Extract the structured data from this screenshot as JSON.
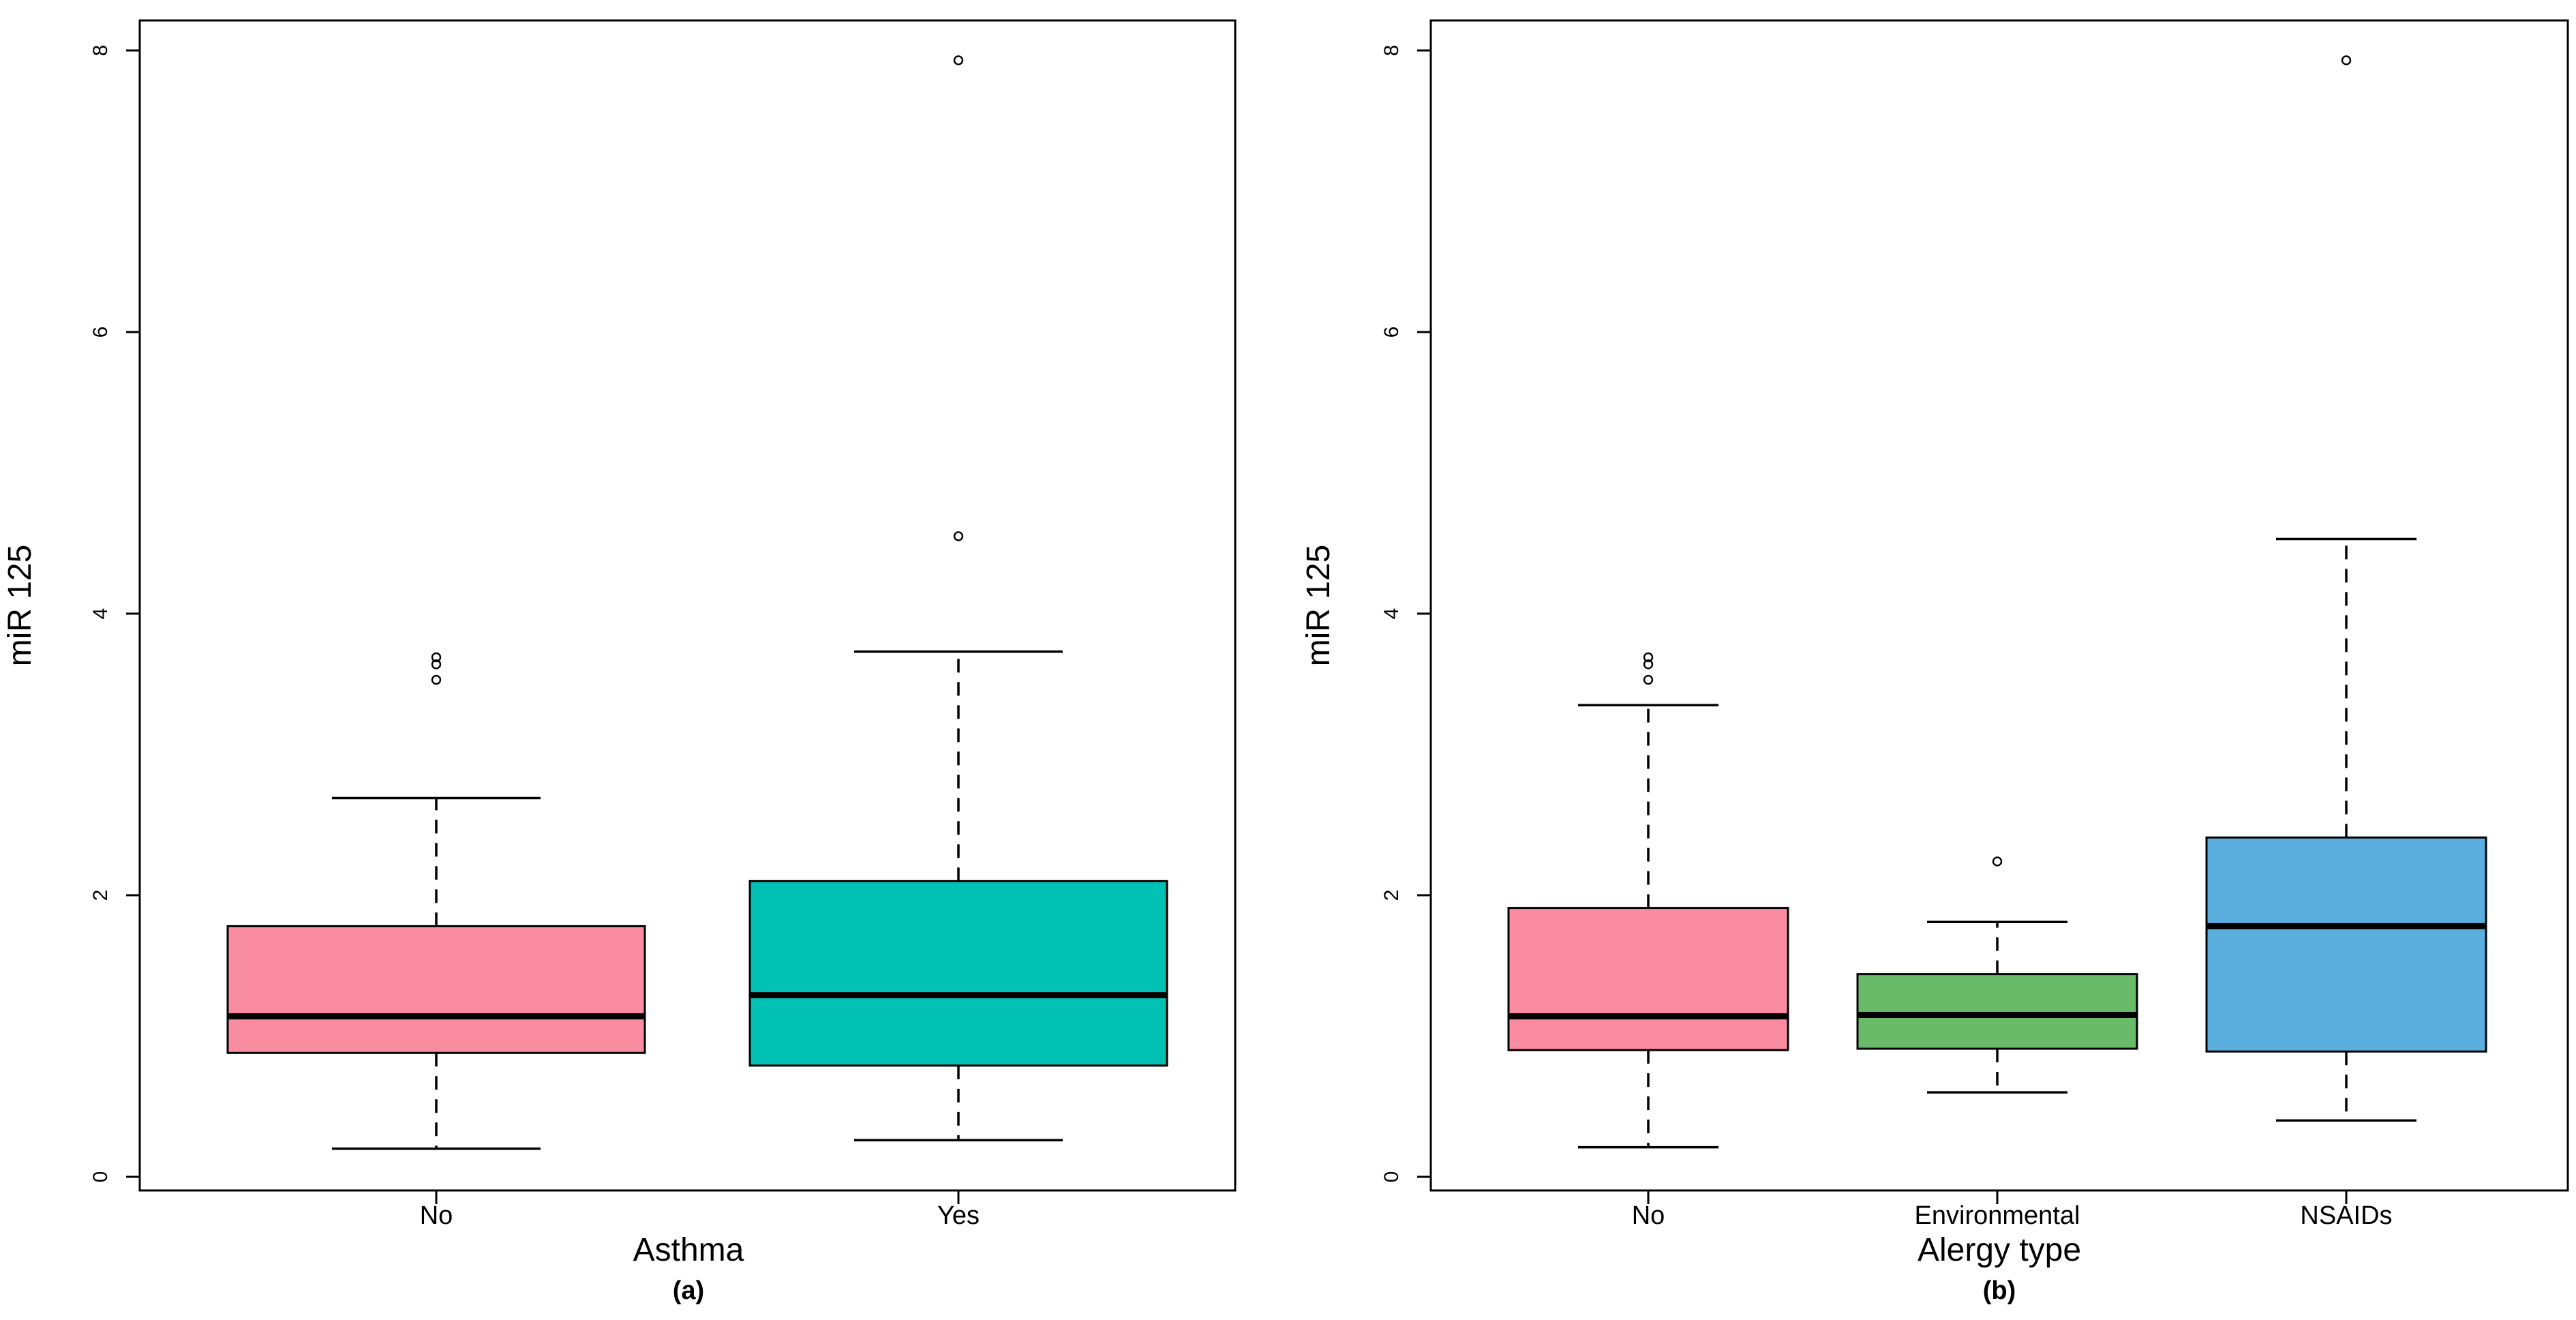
{
  "figure": {
    "background": "#FFFFFF",
    "line_color": "#000000",
    "y_axis_label": "miR 125"
  },
  "chart_data": [
    {
      "type": "boxplot",
      "panel_label": "(a)",
      "xlabel": "Asthma",
      "ylabel": "miR 125",
      "ylim": [
        0,
        8.3
      ],
      "yticks": [
        0,
        2,
        4,
        6,
        8
      ],
      "grid": false,
      "legend": null,
      "categories": [
        "No",
        "Yes"
      ],
      "series": [
        {
          "name": "No",
          "fill": "#F98CA0",
          "whisker_low": 0.2,
          "q1": 0.88,
          "median": 1.14,
          "q3": 1.78,
          "whisker_high": 2.69,
          "outliers": [
            3.53,
            3.64,
            3.69
          ]
        },
        {
          "name": "Yes",
          "fill": "#00C1B4",
          "whisker_low": 0.26,
          "q1": 0.79,
          "median": 1.29,
          "q3": 2.1,
          "whisker_high": 3.73,
          "outliers": [
            4.55,
            7.93
          ]
        }
      ]
    },
    {
      "type": "boxplot",
      "panel_label": "(b)",
      "xlabel": "Alergy type",
      "ylabel": "miR 125",
      "ylim": [
        0,
        8.3
      ],
      "yticks": [
        0,
        2,
        4,
        6,
        8
      ],
      "grid": false,
      "legend": null,
      "categories": [
        "No",
        "Environmental",
        "NSAIDs"
      ],
      "series": [
        {
          "name": "No",
          "fill": "#F98CA0",
          "whisker_low": 0.21,
          "q1": 0.9,
          "median": 1.14,
          "q3": 1.91,
          "whisker_high": 3.35,
          "outliers": [
            3.53,
            3.64,
            3.69
          ]
        },
        {
          "name": "Environmental",
          "fill": "#69BB6A",
          "whisker_low": 0.6,
          "q1": 0.91,
          "median": 1.15,
          "q3": 1.44,
          "whisker_high": 1.81,
          "outliers": [
            2.24
          ]
        },
        {
          "name": "NSAIDs",
          "fill": "#5BAFDE",
          "whisker_low": 0.4,
          "q1": 0.89,
          "median": 1.78,
          "q3": 2.41,
          "whisker_high": 4.53,
          "outliers": [
            7.93
          ]
        }
      ]
    }
  ]
}
